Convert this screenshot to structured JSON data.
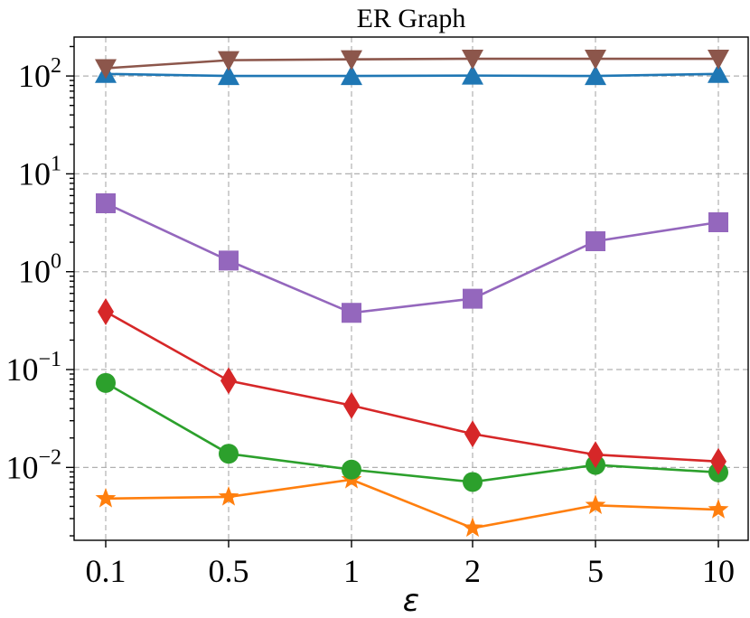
{
  "chart_data": {
    "type": "line",
    "title": "ER Graph",
    "xlabel": "ε",
    "ylabel": "",
    "yscale": "log",
    "ylim": [
      0.0018,
      250
    ],
    "categories": [
      "0.1",
      "0.5",
      "1",
      "2",
      "5",
      "10"
    ],
    "yticks": [
      {
        "value": 0.01,
        "base": "10",
        "exp": "−2"
      },
      {
        "value": 0.1,
        "base": "10",
        "exp": "−1"
      },
      {
        "value": 1,
        "base": "10",
        "exp": "0"
      },
      {
        "value": 10,
        "base": "10",
        "exp": "1"
      },
      {
        "value": 100,
        "base": "10",
        "exp": "2"
      }
    ],
    "grid": true,
    "series": [
      {
        "name": "brown",
        "color": "#8c564b",
        "marker": "triangle-down",
        "values": [
          120,
          145,
          148,
          150,
          150,
          150
        ]
      },
      {
        "name": "blue",
        "color": "#1f77b4",
        "marker": "triangle-up",
        "values": [
          105,
          100,
          100,
          101,
          100,
          105
        ]
      },
      {
        "name": "purple",
        "color": "#9467bd",
        "marker": "square",
        "values": [
          5.0,
          1.3,
          0.38,
          0.53,
          2.05,
          3.2
        ]
      },
      {
        "name": "red",
        "color": "#d62728",
        "marker": "diamond",
        "values": [
          0.39,
          0.077,
          0.043,
          0.022,
          0.0135,
          0.0115
        ]
      },
      {
        "name": "green",
        "color": "#2ca02c",
        "marker": "circle",
        "values": [
          0.073,
          0.0138,
          0.0095,
          0.0071,
          0.0106,
          0.0089
        ]
      },
      {
        "name": "orange",
        "color": "#ff7f0e",
        "marker": "star",
        "values": [
          0.0048,
          0.005,
          0.0075,
          0.0024,
          0.0041,
          0.0037
        ]
      }
    ]
  }
}
